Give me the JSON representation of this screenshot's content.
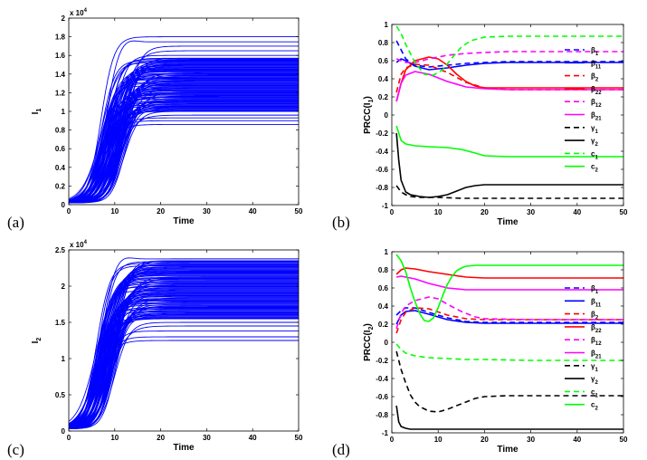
{
  "chart_data": [
    {
      "id": "a",
      "type": "line",
      "panel_label": "(a)",
      "xlabel": "Time",
      "ylabel": "I",
      "ylabel_sub": "1",
      "exponent_label": "x 10",
      "exponent_power": "4",
      "xlim": [
        0,
        50
      ],
      "ylim": [
        0,
        2
      ],
      "xticks": [
        0,
        10,
        20,
        30,
        40,
        50
      ],
      "yticks": [
        0,
        0.2,
        0.4,
        0.6,
        0.8,
        1,
        1.2,
        1.4,
        1.6,
        1.8,
        2
      ],
      "ytick_labels": [
        "0",
        "0.2",
        "0.4",
        "0.6",
        "0.8",
        "1",
        "1.2",
        "1.4",
        "1.6",
        "1.8",
        "2"
      ],
      "series_color": "#0000ff",
      "ensemble": {
        "description": "Many logistic growth trajectories from Monte Carlo samples",
        "initial_value": 0.02,
        "plateau_levels": [
          0.86,
          0.9,
          0.93,
          0.96,
          1.0,
          1.05,
          1.1,
          1.15,
          1.2,
          1.25,
          1.3,
          1.35,
          1.4,
          1.45,
          1.5,
          1.54,
          1.57,
          1.6,
          1.65,
          1.7,
          1.8
        ],
        "midpoint_range": [
          7,
          12
        ],
        "overshoot_levels": [
          1.8
        ],
        "dense_band": [
          1.0,
          1.57
        ]
      }
    },
    {
      "id": "b",
      "type": "line",
      "panel_label": "(b)",
      "xlabel": "Time",
      "ylabel": "PRCC(I",
      "ylabel_sub": "1",
      "ylabel_end": ")",
      "xlim": [
        0,
        50
      ],
      "ylim": [
        -1,
        1
      ],
      "xticks": [
        0,
        10,
        20,
        30,
        40,
        50
      ],
      "yticks": [
        -1,
        -0.8,
        -0.6,
        -0.4,
        -0.2,
        0,
        0.2,
        0.4,
        0.6,
        0.8,
        1
      ],
      "ytick_labels": [
        "-1",
        "-0.8",
        "-0.6",
        "-0.4",
        "-0.2",
        "0",
        "0.2",
        "0.4",
        "0.6",
        "0.8",
        "1"
      ],
      "series": [
        {
          "name": "β",
          "sub": "1",
          "color": "#0000ff",
          "dash": "dashed",
          "x": [
            1,
            2,
            3,
            5,
            8,
            12,
            16,
            20,
            25,
            30,
            40,
            50
          ],
          "y": [
            0.82,
            0.72,
            0.62,
            0.55,
            0.53,
            0.55,
            0.57,
            0.58,
            0.59,
            0.59,
            0.59,
            0.59
          ]
        },
        {
          "name": "β",
          "sub": "11",
          "color": "#0000ff",
          "dash": "solid",
          "x": [
            1,
            2,
            3,
            5,
            8,
            12,
            16,
            20,
            25,
            30,
            40,
            50
          ],
          "y": [
            0.58,
            0.62,
            0.6,
            0.54,
            0.5,
            0.52,
            0.55,
            0.57,
            0.58,
            0.58,
            0.58,
            0.58
          ]
        },
        {
          "name": "β",
          "sub": "2",
          "color": "#ff0000",
          "dash": "dashed",
          "x": [
            1,
            2,
            3,
            5,
            8,
            12,
            16,
            20,
            25,
            30,
            40,
            50
          ],
          "y": [
            0.25,
            0.45,
            0.52,
            0.56,
            0.55,
            0.47,
            0.36,
            0.3,
            0.28,
            0.28,
            0.28,
            0.28
          ]
        },
        {
          "name": "β",
          "sub": "22",
          "color": "#ff0000",
          "dash": "solid",
          "x": [
            1,
            2,
            3,
            5,
            8,
            10,
            12,
            14,
            16,
            18,
            20,
            25,
            30,
            40,
            50
          ],
          "y": [
            0.15,
            0.35,
            0.5,
            0.6,
            0.64,
            0.62,
            0.55,
            0.45,
            0.37,
            0.32,
            0.3,
            0.3,
            0.3,
            0.3,
            0.3
          ]
        },
        {
          "name": "β",
          "sub": "12",
          "color": "#ff00ff",
          "dash": "dashed",
          "x": [
            1,
            2,
            3,
            5,
            8,
            12,
            16,
            20,
            25,
            30,
            40,
            50
          ],
          "y": [
            0.62,
            0.6,
            0.58,
            0.58,
            0.62,
            0.66,
            0.68,
            0.69,
            0.7,
            0.7,
            0.7,
            0.7
          ]
        },
        {
          "name": "β",
          "sub": "21",
          "color": "#ff00ff",
          "dash": "solid",
          "x": [
            1,
            2,
            3,
            5,
            8,
            12,
            16,
            20,
            25,
            30,
            40,
            50
          ],
          "y": [
            0.15,
            0.35,
            0.44,
            0.48,
            0.45,
            0.37,
            0.31,
            0.29,
            0.28,
            0.28,
            0.28,
            0.28
          ]
        },
        {
          "name": "γ",
          "sub": "1",
          "color": "#000000",
          "dash": "dashed",
          "x": [
            1,
            2,
            3,
            4,
            6,
            10,
            15,
            20,
            30,
            40,
            50
          ],
          "y": [
            -0.78,
            -0.85,
            -0.88,
            -0.9,
            -0.91,
            -0.91,
            -0.92,
            -0.92,
            -0.92,
            -0.92,
            -0.92
          ]
        },
        {
          "name": "γ",
          "sub": "2",
          "color": "#000000",
          "dash": "solid",
          "x": [
            1,
            1.5,
            2,
            3,
            4,
            6,
            8,
            10,
            12,
            14,
            16,
            18,
            20,
            25,
            30,
            40,
            50
          ],
          "y": [
            -0.2,
            -0.5,
            -0.72,
            -0.85,
            -0.88,
            -0.9,
            -0.91,
            -0.9,
            -0.88,
            -0.84,
            -0.8,
            -0.78,
            -0.77,
            -0.77,
            -0.77,
            -0.77,
            -0.77
          ]
        },
        {
          "name": "c",
          "sub": "1",
          "color": "#00ff00",
          "dash": "dashed",
          "x": [
            1,
            2,
            3,
            5,
            7,
            9,
            11,
            13,
            15,
            17,
            20,
            25,
            30,
            40,
            50
          ],
          "y": [
            0.98,
            0.9,
            0.78,
            0.58,
            0.45,
            0.44,
            0.5,
            0.63,
            0.75,
            0.82,
            0.86,
            0.87,
            0.87,
            0.87,
            0.87
          ]
        },
        {
          "name": "c",
          "sub": "2",
          "color": "#00ff00",
          "dash": "solid",
          "x": [
            1,
            2,
            3,
            5,
            8,
            12,
            15,
            18,
            20,
            25,
            30,
            40,
            50
          ],
          "y": [
            -0.12,
            -0.28,
            -0.32,
            -0.34,
            -0.35,
            -0.36,
            -0.38,
            -0.42,
            -0.45,
            -0.46,
            -0.46,
            -0.46,
            -0.46
          ]
        }
      ]
    },
    {
      "id": "c",
      "type": "line",
      "panel_label": "(c)",
      "xlabel": "Time",
      "ylabel": "I",
      "ylabel_sub": "2",
      "exponent_label": "x 10",
      "exponent_power": "4",
      "xlim": [
        0,
        50
      ],
      "ylim": [
        0,
        2.5
      ],
      "xticks": [
        0,
        10,
        20,
        30,
        40,
        50
      ],
      "yticks": [
        0,
        0.5,
        1,
        1.5,
        2,
        2.5
      ],
      "ytick_labels": [
        "0",
        "0.5",
        "1",
        "1.5",
        "2",
        "2.5"
      ],
      "series_color": "#0000ff",
      "ensemble": {
        "description": "Many logistic growth trajectories with slight overshoot",
        "initial_value": 0.03,
        "plateau_levels": [
          1.25,
          1.3,
          1.38,
          1.45,
          1.5,
          1.55,
          1.6,
          1.7,
          1.8,
          1.9,
          2.0,
          2.1,
          2.2,
          2.3,
          2.35
        ],
        "midpoint_range": [
          6,
          10
        ],
        "overshoot_levels": [
          2.45
        ],
        "dense_band": [
          1.55,
          2.35
        ]
      }
    },
    {
      "id": "d",
      "type": "line",
      "panel_label": "(d)",
      "xlabel": "Time",
      "ylabel": "PRCC(I",
      "ylabel_sub": "2",
      "ylabel_end": ")",
      "xlim": [
        0,
        50
      ],
      "ylim": [
        -1,
        1
      ],
      "xticks": [
        0,
        10,
        20,
        30,
        40,
        50
      ],
      "yticks": [
        -1,
        -0.8,
        -0.6,
        -0.4,
        -0.2,
        0,
        0.2,
        0.4,
        0.6,
        0.8,
        1
      ],
      "ytick_labels": [
        "-1",
        "-0.8",
        "-0.6",
        "-0.4",
        "-0.2",
        "0",
        "0.2",
        "0.4",
        "0.6",
        "0.8",
        "1"
      ],
      "series": [
        {
          "name": "β",
          "sub": "1",
          "color": "#0000ff",
          "dash": "dashed",
          "x": [
            1,
            2,
            3,
            5,
            8,
            12,
            16,
            20,
            30,
            40,
            50
          ],
          "y": [
            0.3,
            0.35,
            0.38,
            0.38,
            0.33,
            0.27,
            0.23,
            0.22,
            0.22,
            0.22,
            0.22
          ]
        },
        {
          "name": "β",
          "sub": "11",
          "color": "#0000ff",
          "dash": "solid",
          "x": [
            1,
            2,
            3,
            5,
            8,
            12,
            16,
            20,
            30,
            40,
            50
          ],
          "y": [
            0.2,
            0.3,
            0.34,
            0.35,
            0.31,
            0.25,
            0.22,
            0.21,
            0.21,
            0.21,
            0.21
          ]
        },
        {
          "name": "β",
          "sub": "2",
          "color": "#ff0000",
          "dash": "dashed",
          "x": [
            1,
            2,
            3,
            5,
            8,
            12,
            16,
            20,
            30,
            40,
            50
          ],
          "y": [
            0.1,
            0.25,
            0.33,
            0.38,
            0.37,
            0.3,
            0.26,
            0.25,
            0.25,
            0.25,
            0.25
          ]
        },
        {
          "name": "β",
          "sub": "22",
          "color": "#ff0000",
          "dash": "solid",
          "x": [
            1,
            2,
            3,
            5,
            8,
            12,
            16,
            20,
            30,
            40,
            50
          ],
          "y": [
            0.75,
            0.8,
            0.82,
            0.81,
            0.78,
            0.75,
            0.72,
            0.71,
            0.71,
            0.71,
            0.71
          ]
        },
        {
          "name": "β",
          "sub": "12",
          "color": "#ff00ff",
          "dash": "dashed",
          "x": [
            1,
            2,
            3,
            5,
            8,
            10,
            12,
            15,
            18,
            20,
            30,
            40,
            50
          ],
          "y": [
            0.15,
            0.32,
            0.4,
            0.46,
            0.5,
            0.48,
            0.42,
            0.34,
            0.28,
            0.26,
            0.25,
            0.25,
            0.25
          ]
        },
        {
          "name": "β",
          "sub": "21",
          "color": "#ff00ff",
          "dash": "solid",
          "x": [
            1,
            2,
            3,
            5,
            8,
            12,
            16,
            20,
            30,
            40,
            50
          ],
          "y": [
            0.72,
            0.73,
            0.72,
            0.7,
            0.65,
            0.6,
            0.58,
            0.58,
            0.58,
            0.58,
            0.58
          ]
        },
        {
          "name": "γ",
          "sub": "1",
          "color": "#000000",
          "dash": "dashed",
          "x": [
            1,
            2,
            3,
            4,
            5,
            6,
            8,
            10,
            12,
            15,
            18,
            20,
            25,
            30,
            40,
            50
          ],
          "y": [
            -0.1,
            -0.3,
            -0.45,
            -0.58,
            -0.66,
            -0.71,
            -0.76,
            -0.77,
            -0.74,
            -0.68,
            -0.62,
            -0.6,
            -0.59,
            -0.59,
            -0.59,
            -0.59
          ]
        },
        {
          "name": "γ",
          "sub": "2",
          "color": "#000000",
          "dash": "solid",
          "x": [
            1,
            1.5,
            2,
            3,
            4,
            6,
            10,
            20,
            30,
            40,
            50
          ],
          "y": [
            -0.7,
            -0.88,
            -0.93,
            -0.95,
            -0.96,
            -0.96,
            -0.96,
            -0.96,
            -0.96,
            -0.96,
            -0.96
          ]
        },
        {
          "name": "c",
          "sub": "1",
          "color": "#00ff00",
          "dash": "dashed",
          "x": [
            1,
            2,
            3,
            5,
            8,
            12,
            16,
            20,
            30,
            40,
            50
          ],
          "y": [
            -0.02,
            -0.08,
            -0.12,
            -0.15,
            -0.17,
            -0.18,
            -0.19,
            -0.19,
            -0.2,
            -0.2,
            -0.2
          ]
        },
        {
          "name": "c",
          "sub": "2",
          "color": "#00ff00",
          "dash": "solid",
          "x": [
            1,
            2,
            3,
            4,
            5,
            6,
            7,
            8,
            9,
            10,
            11,
            12,
            13,
            14,
            15,
            16,
            18,
            20,
            25,
            30,
            40,
            50
          ],
          "y": [
            0.97,
            0.9,
            0.78,
            0.6,
            0.45,
            0.32,
            0.24,
            0.23,
            0.27,
            0.38,
            0.52,
            0.64,
            0.73,
            0.79,
            0.82,
            0.84,
            0.85,
            0.85,
            0.85,
            0.85,
            0.85,
            0.85
          ]
        }
      ]
    }
  ]
}
